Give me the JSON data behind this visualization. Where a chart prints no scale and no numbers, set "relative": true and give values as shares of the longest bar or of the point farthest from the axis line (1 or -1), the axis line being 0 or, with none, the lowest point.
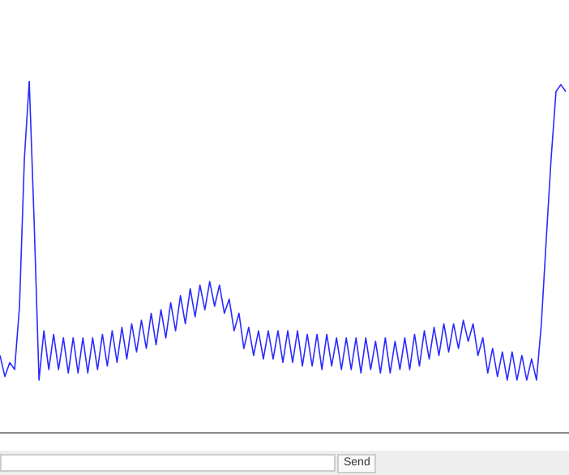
{
  "chart_data": {
    "type": "line",
    "relative": true,
    "categories": [
      null,
      null,
      null,
      null,
      null,
      null,
      null,
      null,
      null,
      null,
      null,
      null,
      null,
      null,
      null,
      null,
      null,
      null,
      null,
      null,
      null,
      null,
      null,
      null,
      null,
      null,
      null,
      null,
      null,
      null,
      null,
      null,
      null,
      null,
      null,
      null,
      null,
      null,
      null,
      null,
      null,
      null,
      null,
      null,
      null,
      null,
      null,
      null,
      null,
      null,
      null,
      null,
      null,
      null,
      null,
      null,
      null,
      null,
      null,
      null,
      null,
      null,
      null,
      null,
      null,
      null,
      null,
      null,
      null,
      null,
      null,
      null,
      null,
      null,
      null,
      null,
      null,
      null,
      null,
      null,
      null,
      null,
      null,
      null,
      null,
      null,
      null,
      null,
      null,
      null,
      null,
      null,
      null,
      null,
      null,
      null,
      null,
      null,
      null,
      null,
      null,
      null,
      null,
      null,
      null,
      null,
      null,
      null,
      null,
      null,
      null,
      null,
      null,
      null,
      null,
      null,
      null
    ],
    "series": [
      {
        "color": "#2a2aff",
        "values": [
          0.22,
          0.16,
          0.2,
          0.18,
          0.36,
          0.78,
          1.0,
          0.6,
          0.15,
          0.29,
          0.18,
          0.28,
          0.18,
          0.27,
          0.17,
          0.27,
          0.17,
          0.27,
          0.17,
          0.27,
          0.18,
          0.28,
          0.19,
          0.29,
          0.2,
          0.3,
          0.21,
          0.31,
          0.23,
          0.32,
          0.24,
          0.34,
          0.25,
          0.35,
          0.27,
          0.37,
          0.29,
          0.39,
          0.31,
          0.41,
          0.33,
          0.42,
          0.35,
          0.43,
          0.36,
          0.42,
          0.34,
          0.38,
          0.29,
          0.34,
          0.24,
          0.3,
          0.22,
          0.29,
          0.21,
          0.29,
          0.21,
          0.29,
          0.2,
          0.29,
          0.2,
          0.29,
          0.19,
          0.28,
          0.19,
          0.28,
          0.18,
          0.28,
          0.19,
          0.27,
          0.18,
          0.27,
          0.18,
          0.27,
          0.17,
          0.27,
          0.18,
          0.26,
          0.17,
          0.27,
          0.17,
          0.26,
          0.18,
          0.27,
          0.18,
          0.28,
          0.19,
          0.29,
          0.21,
          0.3,
          0.22,
          0.31,
          0.23,
          0.31,
          0.24,
          0.32,
          0.26,
          0.31,
          0.22,
          0.27,
          0.17,
          0.24,
          0.16,
          0.23,
          0.15,
          0.23,
          0.15,
          0.22,
          0.15,
          0.21,
          0.15,
          0.31,
          0.55,
          0.78,
          0.97,
          0.99,
          0.97
        ]
      }
    ],
    "annotations": [
      "Send"
    ]
  }
}
